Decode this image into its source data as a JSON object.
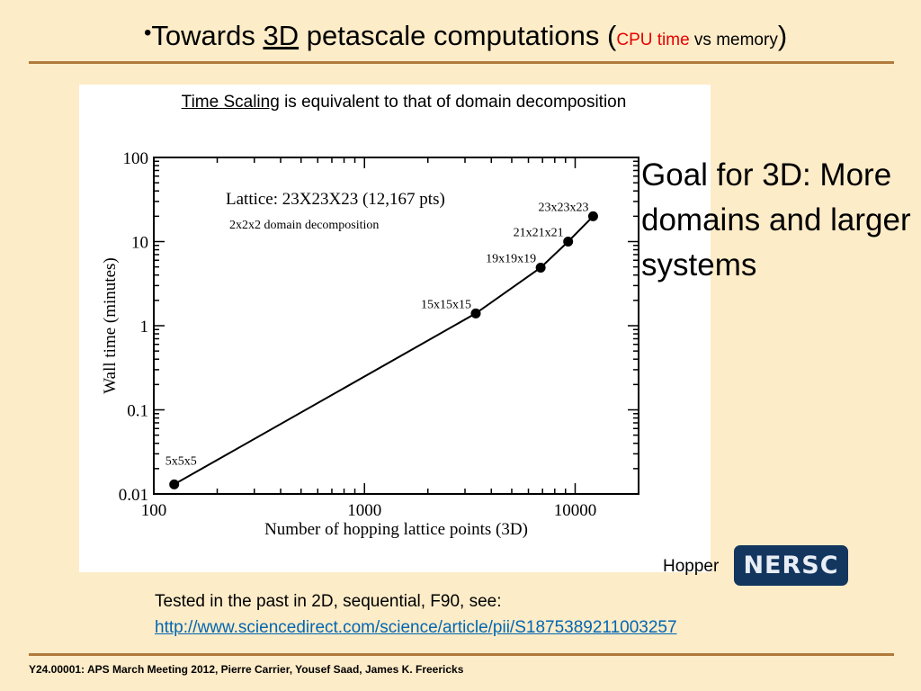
{
  "slide": {
    "bullet": "•",
    "title_part1": "Towards ",
    "title_3d": "3D",
    "title_part2": " petascale computations (",
    "title_cpu": "CPU time",
    "title_vs": " vs memory",
    "title_close": ")",
    "caption_head": "Time Scaling",
    "caption_rest": " is equivalent to that of domain decomposition",
    "goal": "Goal for 3D: More domains and larger systems",
    "hopper": "Hopper",
    "nersc_logo": "NERSC",
    "tested": "Tested in the past in 2D, sequential, F90, see:",
    "link": "http://www.sciencedirect.com/science/article/pii/S1875389211003257",
    "footer": "Y24.00001: APS March Meeting 2012, Pierre Carrier, Yousef Saad, James K. Freericks",
    "colors": {
      "background": "#fdecc8",
      "rule": "#b07a3c",
      "accent_red": "#e60000",
      "link": "#0066b3",
      "nersc_bg": "#13365f"
    }
  },
  "chart_data": {
    "type": "line",
    "xlabel": "Number of hopping lattice points (3D)",
    "ylabel": "Wall time (minutes)",
    "xscale": "log",
    "yscale": "log",
    "xlim": [
      100,
      20000
    ],
    "ylim": [
      0.01,
      100
    ],
    "xticks": [
      "100",
      "1000",
      "10000"
    ],
    "yticks": [
      "0.01",
      "0.1",
      "1",
      "10",
      "100"
    ],
    "annotation_main": "Lattice: 23X23X23 (12,167 pts)",
    "annotation_sub": "2x2x2 domain decomposition",
    "points": [
      {
        "label": "5x5x5",
        "x": 125,
        "y": 0.013
      },
      {
        "label": "15x15x15",
        "x": 3375,
        "y": 1.4
      },
      {
        "label": "19x19x19",
        "x": 6859,
        "y": 4.9
      },
      {
        "label": "21x21x21",
        "x": 9261,
        "y": 10
      },
      {
        "label": "23x23x23",
        "x": 12167,
        "y": 20
      }
    ],
    "grid": false,
    "legend": "none"
  }
}
